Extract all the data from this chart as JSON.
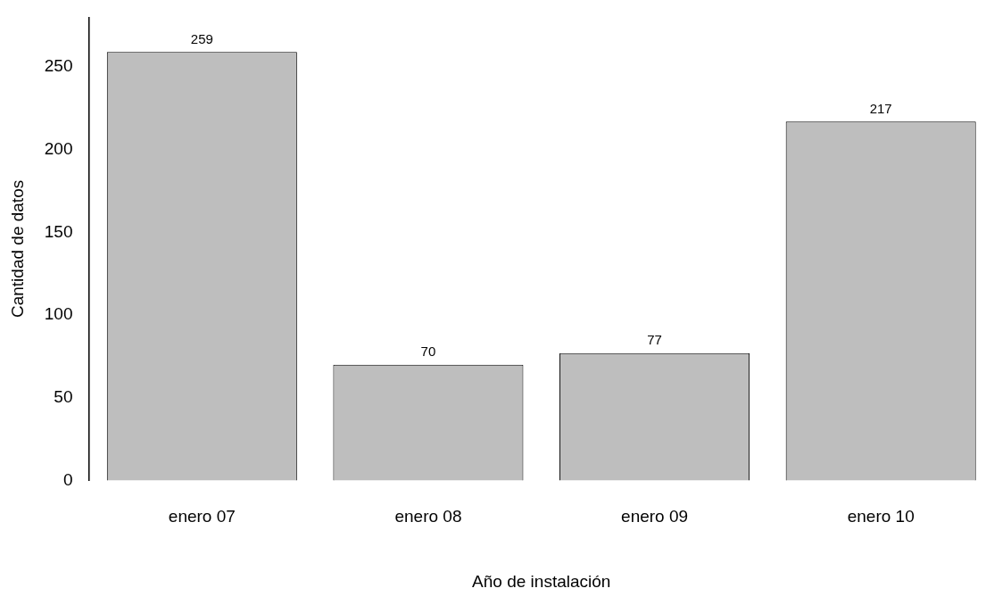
{
  "chart_data": {
    "type": "bar",
    "xlabel": "Año de instalación",
    "ylabel": "Cantidad de datos",
    "categories": [
      "enero 07",
      "enero 08",
      "enero 09",
      "enero 10"
    ],
    "values": [
      259,
      70,
      77,
      217
    ],
    "color": "#bebebe",
    "ylim": [
      0,
      280
    ],
    "yticks": [
      0,
      50,
      100,
      150,
      200,
      250
    ],
    "grid": false,
    "legend": false,
    "data_labels": true
  }
}
